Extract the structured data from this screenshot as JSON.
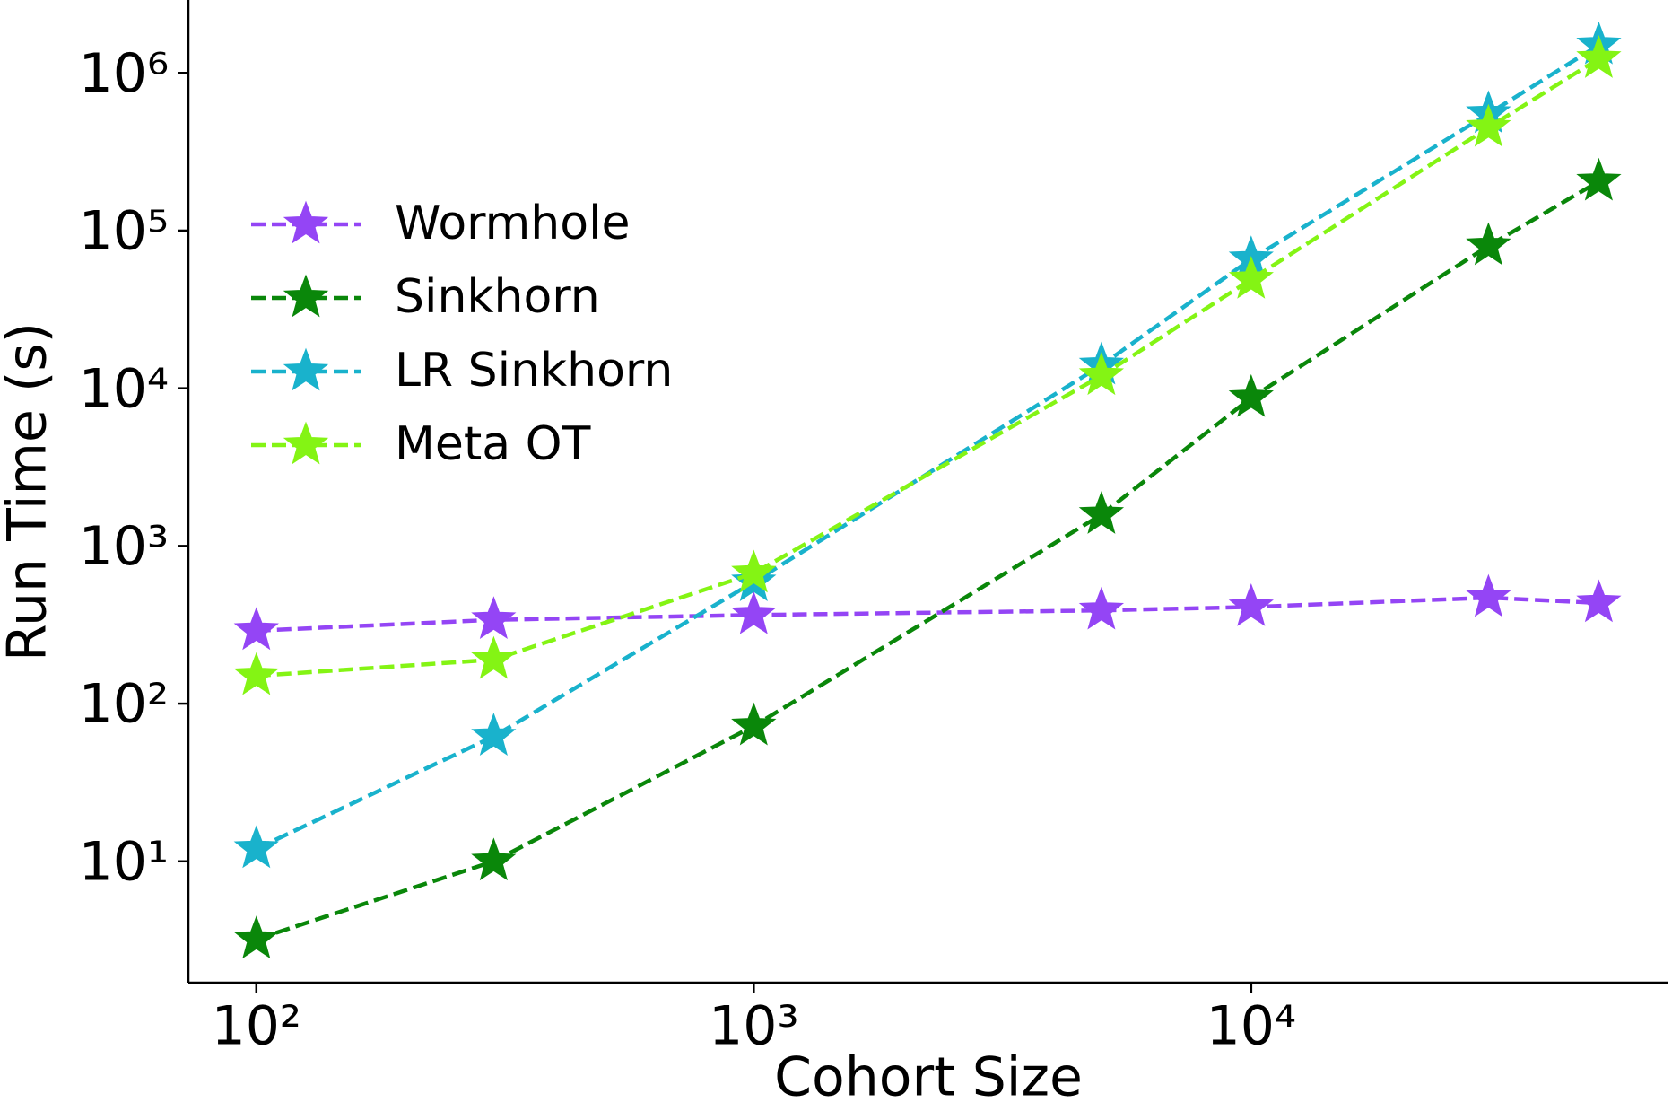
{
  "chart_data": {
    "type": "line",
    "xlabel": "Cohort Size",
    "ylabel": "Run Time (s)",
    "xscale": "log",
    "yscale": "log",
    "grid": false,
    "legend": "upper left",
    "x": [
      100,
      300,
      1000,
      5000,
      10000,
      30000,
      50000
    ],
    "series": [
      {
        "name": "Wormhole",
        "color": "#9445f5",
        "values": [
          290,
          340,
          365,
          390,
          410,
          470,
          435
        ]
      },
      {
        "name": "Sinkhorn",
        "color": "#0a870a",
        "values": [
          3.2,
          10,
          72,
          1580,
          8700,
          80000,
          205000
        ]
      },
      {
        "name": "LR Sinkhorn",
        "color": "#19b2cc",
        "values": [
          12,
          62,
          590,
          14000,
          66000,
          550000,
          1500000
        ]
      },
      {
        "name": "Meta OT",
        "color": "#84f414",
        "values": [
          150,
          190,
          670,
          12000,
          49000,
          450000,
          1230000
        ]
      }
    ],
    "xlim": [
      73,
      69000
    ],
    "xticks": [
      {
        "value": 100,
        "label": "10²"
      },
      {
        "value": 1000,
        "label": "10³"
      },
      {
        "value": 10000,
        "label": "10⁴"
      }
    ],
    "ylim": [
      1.7,
      2900000
    ],
    "yticks": [
      {
        "value": 10,
        "label": "10¹"
      },
      {
        "value": 100,
        "label": "10²"
      },
      {
        "value": 1000,
        "label": "10³"
      },
      {
        "value": 10000,
        "label": "10⁴"
      },
      {
        "value": 100000,
        "label": "10⁵"
      },
      {
        "value": 1000000,
        "label": "10⁶"
      }
    ]
  }
}
